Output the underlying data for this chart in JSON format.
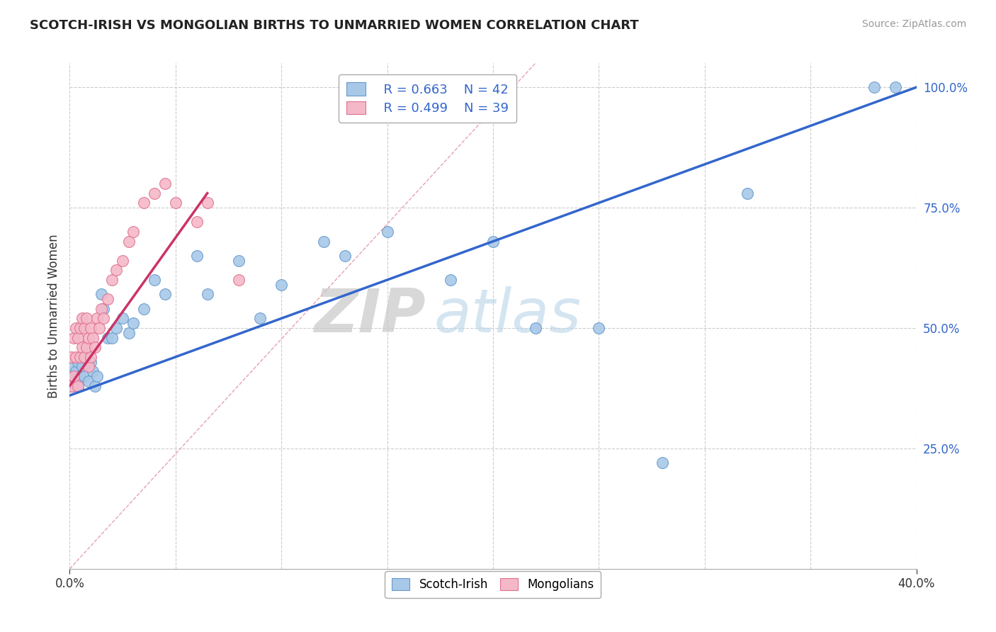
{
  "title": "SCOTCH-IRISH VS MONGOLIAN BIRTHS TO UNMARRIED WOMEN CORRELATION CHART",
  "source": "Source: ZipAtlas.com",
  "ylabel": "Births to Unmarried Women",
  "xlim": [
    0.0,
    0.4
  ],
  "ylim": [
    0.0,
    1.05
  ],
  "scotch_irish_color": "#a8c8e8",
  "scotch_irish_edge": "#6699cc",
  "mongolian_color": "#f4b8c8",
  "mongolian_edge": "#e07090",
  "trend_blue": "#3366cc",
  "trend_pink": "#cc3366",
  "diag_color": "#ddaaaa",
  "legend_R1": "R = 0.663",
  "legend_N1": "N = 42",
  "legend_R2": "R = 0.499",
  "legend_N2": "N = 39",
  "watermark_zip": "ZIP",
  "watermark_atlas": "atlas",
  "scotch_x": [
    0.001,
    0.002,
    0.002,
    0.003,
    0.004,
    0.004,
    0.005,
    0.006,
    0.007,
    0.008,
    0.009,
    0.01,
    0.011,
    0.012,
    0.013,
    0.015,
    0.016,
    0.018,
    0.02,
    0.022,
    0.025,
    0.028,
    0.03,
    0.035,
    0.04,
    0.045,
    0.06,
    0.065,
    0.08,
    0.09,
    0.1,
    0.12,
    0.13,
    0.15,
    0.18,
    0.2,
    0.22,
    0.25,
    0.28,
    0.32,
    0.38,
    0.39
  ],
  "scotch_y": [
    0.38,
    0.42,
    0.4,
    0.41,
    0.43,
    0.38,
    0.4,
    0.42,
    0.4,
    0.44,
    0.39,
    0.43,
    0.41,
    0.38,
    0.4,
    0.57,
    0.54,
    0.48,
    0.48,
    0.5,
    0.52,
    0.49,
    0.51,
    0.54,
    0.6,
    0.57,
    0.65,
    0.57,
    0.64,
    0.52,
    0.59,
    0.68,
    0.65,
    0.7,
    0.6,
    0.68,
    0.5,
    0.5,
    0.22,
    0.78,
    1.0,
    1.0
  ],
  "mongol_x": [
    0.001,
    0.001,
    0.002,
    0.002,
    0.003,
    0.003,
    0.004,
    0.004,
    0.005,
    0.005,
    0.006,
    0.006,
    0.007,
    0.007,
    0.008,
    0.008,
    0.009,
    0.009,
    0.01,
    0.01,
    0.011,
    0.012,
    0.013,
    0.014,
    0.015,
    0.016,
    0.018,
    0.02,
    0.022,
    0.025,
    0.028,
    0.03,
    0.035,
    0.04,
    0.045,
    0.05,
    0.06,
    0.065,
    0.08
  ],
  "mongol_y": [
    0.44,
    0.38,
    0.48,
    0.4,
    0.5,
    0.44,
    0.48,
    0.38,
    0.5,
    0.44,
    0.52,
    0.46,
    0.5,
    0.44,
    0.52,
    0.46,
    0.48,
    0.42,
    0.5,
    0.44,
    0.48,
    0.46,
    0.52,
    0.5,
    0.54,
    0.52,
    0.56,
    0.6,
    0.62,
    0.64,
    0.68,
    0.7,
    0.76,
    0.78,
    0.8,
    0.76,
    0.72,
    0.76,
    0.6
  ],
  "trend_blue_x0": 0.0,
  "trend_blue_y0": 0.36,
  "trend_blue_x1": 0.4,
  "trend_blue_y1": 1.0,
  "trend_pink_x0": 0.0,
  "trend_pink_y0": 0.38,
  "trend_pink_x1": 0.065,
  "trend_pink_y1": 0.78
}
